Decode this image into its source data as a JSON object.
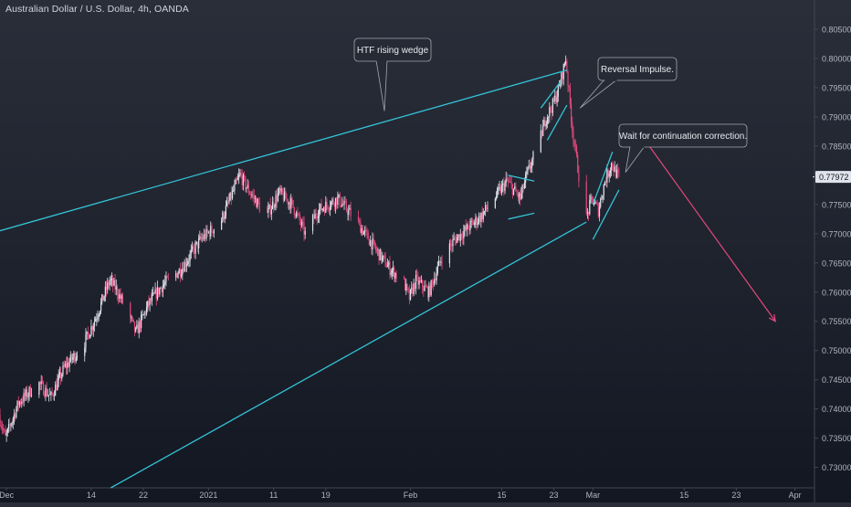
{
  "title": "Australian Dollar / U.S. Dollar, 4h, OANDA",
  "colors": {
    "up": "#e0e3eb",
    "down": "#e2487b",
    "trendline": "#33c3d6",
    "projection": "#e2487b",
    "axis_text": "#b2b5be",
    "price_label_bg": "#e0e3eb",
    "price_label_text": "#131722",
    "callout_bg": "#262a35",
    "callout_border": "#a3a6af"
  },
  "chart_data": {
    "type": "candlestick",
    "x_axis": {
      "type": "date",
      "range": [
        "2020-11-30",
        "2021-04-04"
      ],
      "tick_labels": [
        {
          "date": "2020-12-01",
          "label": "Dec"
        },
        {
          "date": "2020-12-14",
          "label": "14"
        },
        {
          "date": "2020-12-22",
          "label": "22"
        },
        {
          "date": "2021-01-01",
          "label": "2021"
        },
        {
          "date": "2021-01-11",
          "label": "11"
        },
        {
          "date": "2021-01-19",
          "label": "19"
        },
        {
          "date": "2021-02-01",
          "label": "Feb"
        },
        {
          "date": "2021-02-15",
          "label": "15"
        },
        {
          "date": "2021-02-23",
          "label": "23"
        },
        {
          "date": "2021-03-01",
          "label": "Mar"
        },
        {
          "date": "2021-03-15",
          "label": "15"
        },
        {
          "date": "2021-03-23",
          "label": "23"
        },
        {
          "date": "2021-04-01",
          "label": "Apr"
        }
      ]
    },
    "y_axis": {
      "range": [
        0.7265,
        0.81
      ],
      "ticks": [
        {
          "value": 0.805,
          "label": "0.80500"
        },
        {
          "value": 0.8,
          "label": "0.80000"
        },
        {
          "value": 0.795,
          "label": "0.79500"
        },
        {
          "value": 0.79,
          "label": "0.79000"
        },
        {
          "value": 0.785,
          "label": "0.78500"
        },
        {
          "value": 0.78,
          "label": "0.78000"
        },
        {
          "value": 0.775,
          "label": "0.77500"
        },
        {
          "value": 0.77,
          "label": "0.77000"
        },
        {
          "value": 0.765,
          "label": "0.76500"
        },
        {
          "value": 0.76,
          "label": "0.76000"
        },
        {
          "value": 0.755,
          "label": "0.75500"
        },
        {
          "value": 0.75,
          "label": "0.75000"
        },
        {
          "value": 0.745,
          "label": "0.74500"
        },
        {
          "value": 0.74,
          "label": "0.74000"
        },
        {
          "value": 0.735,
          "label": "0.73500"
        },
        {
          "value": 0.73,
          "label": "0.73000"
        }
      ],
      "current_price": 0.77972,
      "current_price_label": "0.77972"
    },
    "price_path": [
      [
        "2020-11-30",
        0.739
      ],
      [
        "2020-12-01",
        0.735
      ],
      [
        "2020-12-03",
        0.741
      ],
      [
        "2020-12-06",
        0.7445
      ],
      [
        "2020-12-08",
        0.742
      ],
      [
        "2020-12-10",
        0.747
      ],
      [
        "2020-12-13",
        0.751
      ],
      [
        "2020-12-15",
        0.756
      ],
      [
        "2020-12-17",
        0.762
      ],
      [
        "2020-12-18",
        0.7605
      ],
      [
        "2020-12-20",
        0.756
      ],
      [
        "2020-12-21",
        0.753
      ],
      [
        "2020-12-23",
        0.758
      ],
      [
        "2020-12-25",
        0.761
      ],
      [
        "2020-12-28",
        0.764
      ],
      [
        "2020-12-31",
        0.769
      ],
      [
        "2021-01-03",
        0.772
      ],
      [
        "2021-01-06",
        0.78
      ],
      [
        "2021-01-07",
        0.778
      ],
      [
        "2021-01-10",
        0.773
      ],
      [
        "2021-01-12",
        0.777
      ],
      [
        "2021-01-14",
        0.775
      ],
      [
        "2021-01-16",
        0.77
      ],
      [
        "2021-01-18",
        0.774
      ],
      [
        "2021-01-21",
        0.776
      ],
      [
        "2021-01-24",
        0.772
      ],
      [
        "2021-01-27",
        0.767
      ],
      [
        "2021-01-29",
        0.764
      ],
      [
        "2021-01-31",
        0.762
      ],
      [
        "2021-02-01",
        0.759
      ],
      [
        "2021-02-02",
        0.762
      ],
      [
        "2021-02-04",
        0.76
      ],
      [
        "2021-02-06",
        0.766
      ],
      [
        "2021-02-08",
        0.769
      ],
      [
        "2021-02-10",
        0.771
      ],
      [
        "2021-02-12",
        0.773
      ],
      [
        "2021-02-14",
        0.776
      ],
      [
        "2021-02-16",
        0.779
      ],
      [
        "2021-02-18",
        0.776
      ],
      [
        "2021-02-19",
        0.78
      ],
      [
        "2021-02-21",
        0.786
      ],
      [
        "2021-02-22",
        0.79
      ],
      [
        "2021-02-23",
        0.792
      ],
      [
        "2021-02-24",
        0.795
      ],
      [
        "2021-02-25",
        0.8
      ],
      [
        "2021-02-26",
        0.788
      ],
      [
        "2021-02-27",
        0.78
      ],
      [
        "2021-02-28",
        0.772
      ],
      [
        "2021-03-01",
        0.776
      ],
      [
        "2021-03-02",
        0.774
      ],
      [
        "2021-03-03",
        0.779
      ],
      [
        "2021-03-04",
        0.782
      ],
      [
        "2021-03-05",
        0.7797
      ]
    ],
    "annotations": [
      {
        "text": "HTF rising wedge",
        "anchor": [
          "2021-01-28",
          0.791
        ]
      },
      {
        "text": "Reversal Impulse.",
        "anchor": [
          "2021-02-27",
          0.7915
        ]
      },
      {
        "text": "Wait for continuation correction.",
        "anchor": [
          "2021-03-06",
          0.7805
        ]
      }
    ],
    "trendlines": [
      {
        "name": "wedge-upper",
        "from": [
          "2020-11-30",
          0.7705
        ],
        "to": [
          "2021-02-25",
          0.798
        ]
      },
      {
        "name": "wedge-lower",
        "from": [
          "2020-12-17",
          0.7265
        ],
        "to": [
          "2021-02-28",
          0.772
        ]
      },
      {
        "name": "flag-top-1",
        "from": [
          "2021-02-16",
          0.78
        ],
        "to": [
          "2021-02-20",
          0.779
        ]
      },
      {
        "name": "flag-bottom-1",
        "from": [
          "2021-02-16",
          0.7725
        ],
        "to": [
          "2021-02-20",
          0.7735
        ]
      },
      {
        "name": "peak-wedge-top",
        "from": [
          "2021-02-21",
          0.7915
        ],
        "to": [
          "2021-02-24",
          0.796
        ]
      },
      {
        "name": "peak-wedge-bottom",
        "from": [
          "2021-02-22",
          0.786
        ],
        "to": [
          "2021-02-25",
          0.792
        ]
      },
      {
        "name": "pullback-top",
        "from": [
          "2021-03-01",
          0.775
        ],
        "to": [
          "2021-03-04",
          0.784
        ]
      },
      {
        "name": "pullback-bottom",
        "from": [
          "2021-03-01",
          0.769
        ],
        "to": [
          "2021-03-05",
          0.7775
        ]
      }
    ],
    "projection": {
      "from": [
        "2021-03-09",
        0.786
      ],
      "to": [
        "2021-03-29",
        0.755
      ]
    }
  }
}
